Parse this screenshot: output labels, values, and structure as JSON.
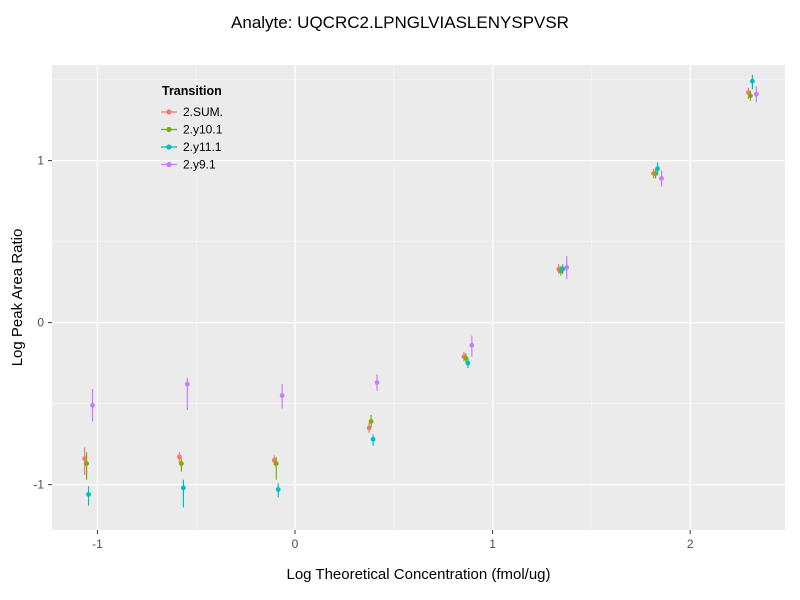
{
  "chart_data": {
    "type": "scatter",
    "title": "Analyte: UQCRC2.LPNGLVIASLENYSPVSR",
    "xlabel": "Log Theoretical Concentration (fmol/ug)",
    "ylabel": "Log Peak Area Ratio",
    "xlim": [
      -1.23,
      2.48
    ],
    "ylim": [
      -1.28,
      1.59
    ],
    "xticks": [
      -1,
      0,
      1,
      2
    ],
    "yticks": [
      -1,
      0,
      1
    ],
    "x_minor": [
      -0.5,
      0.5,
      1.5
    ],
    "y_minor": [
      -0.5,
      0.5,
      1.5
    ],
    "grid": true,
    "panel_bg": "#EBEBEB",
    "grid_major_color": "#FFFFFF",
    "grid_minor_color": "#F7F7F7",
    "tick_label_color": "#4D4D4D",
    "legend_title": "Transition",
    "legend_position": "inside-top-left",
    "series": [
      {
        "name": "2.SUM.",
        "color": "#F8766D",
        "x": [
          -1.065,
          -0.585,
          -0.105,
          0.375,
          0.855,
          1.335,
          1.815,
          2.295
        ],
        "y": [
          -0.84,
          -0.83,
          -0.85,
          -0.65,
          -0.21,
          0.33,
          0.92,
          1.42
        ],
        "ymin": [
          -0.94,
          -0.87,
          -0.88,
          -0.68,
          -0.24,
          0.3,
          0.89,
          1.38
        ],
        "ymax": [
          -0.77,
          -0.8,
          -0.82,
          -0.62,
          -0.18,
          0.36,
          0.95,
          1.45
        ]
      },
      {
        "name": "2.y10.1",
        "color": "#7CAE00",
        "x": [
          -1.055,
          -0.575,
          -0.095,
          0.385,
          0.865,
          1.345,
          1.825,
          2.305
        ],
        "y": [
          -0.87,
          -0.87,
          -0.87,
          -0.61,
          -0.22,
          0.32,
          0.92,
          1.4
        ],
        "ymin": [
          -0.97,
          -0.92,
          -0.97,
          -0.65,
          -0.25,
          0.29,
          0.89,
          1.37
        ],
        "ymax": [
          -0.8,
          -0.84,
          -0.83,
          -0.57,
          -0.19,
          0.35,
          0.95,
          1.43
        ]
      },
      {
        "name": "2.y11.1",
        "color": "#00BFC4",
        "x": [
          -1.045,
          -0.565,
          -0.085,
          0.395,
          0.875,
          1.355,
          1.835,
          2.315
        ],
        "y": [
          -1.06,
          -1.02,
          -1.03,
          -0.72,
          -0.25,
          0.33,
          0.95,
          1.49
        ],
        "ymin": [
          -1.13,
          -1.14,
          -1.08,
          -0.76,
          -0.28,
          0.3,
          0.91,
          1.44
        ],
        "ymax": [
          -1.01,
          -0.97,
          -0.99,
          -0.69,
          -0.22,
          0.36,
          0.99,
          1.53
        ]
      },
      {
        "name": "2.y9.1",
        "color": "#C77CFF",
        "x": [
          -1.025,
          -0.545,
          -0.065,
          0.415,
          0.895,
          1.375,
          1.855,
          2.335
        ],
        "y": [
          -0.51,
          -0.38,
          -0.45,
          -0.37,
          -0.14,
          0.34,
          0.89,
          1.41
        ],
        "ymin": [
          -0.61,
          -0.54,
          -0.53,
          -0.42,
          -0.21,
          0.27,
          0.84,
          1.36
        ],
        "ymax": [
          -0.41,
          -0.34,
          -0.38,
          -0.32,
          -0.08,
          0.41,
          0.94,
          1.46
        ]
      }
    ]
  }
}
